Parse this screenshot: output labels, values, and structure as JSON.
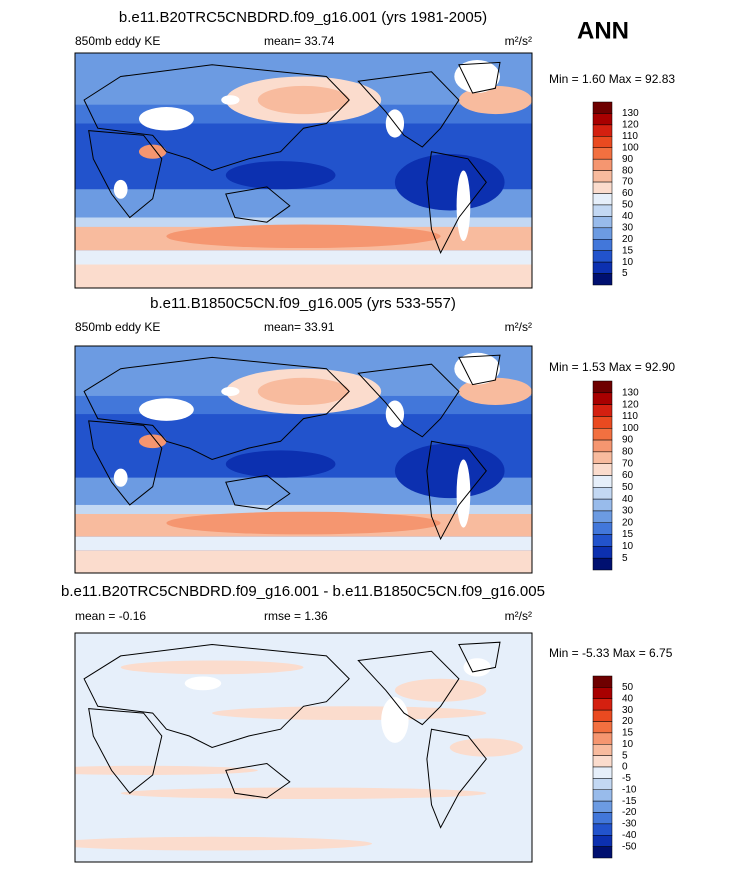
{
  "season": "ANN",
  "panels": [
    {
      "title": "b.e11.B20TRC5CNBDRD.f09_g16.001 (yrs 1981-2005)",
      "left": "850mb eddy KE",
      "center": "mean=  33.74",
      "units": "m²/s²",
      "stats": "Min =  1.60 Max =  92.83",
      "colorbar": [
        "130",
        "120",
        "110",
        "100",
        "90",
        "80",
        "70",
        "60",
        "50",
        "40",
        "30",
        "20",
        "15",
        "10",
        "5"
      ]
    },
    {
      "title": "b.e11.B1850C5CN.f09_g16.005 (yrs 533-557)",
      "left": "850mb eddy KE",
      "center": "mean=  33.91",
      "units": "m²/s²",
      "stats": "Min =  1.53 Max =  92.90",
      "colorbar": [
        "130",
        "120",
        "110",
        "100",
        "90",
        "80",
        "70",
        "60",
        "50",
        "40",
        "30",
        "20",
        "15",
        "10",
        "5"
      ]
    },
    {
      "title": "b.e11.B20TRC5CNBDRD.f09_g16.001 - b.e11.B1850C5CN.f09_g16.005",
      "left": "mean =  -0.16",
      "center": "rmse =  1.36",
      "units": "m²/s²",
      "stats": "Min =  -5.33 Max =   6.75",
      "colorbar": [
        "50",
        "40",
        "30",
        "20",
        "15",
        "10",
        "5",
        "0",
        "-5",
        "-10",
        "-15",
        "-20",
        "-30",
        "-40",
        "-50"
      ]
    }
  ]
}
